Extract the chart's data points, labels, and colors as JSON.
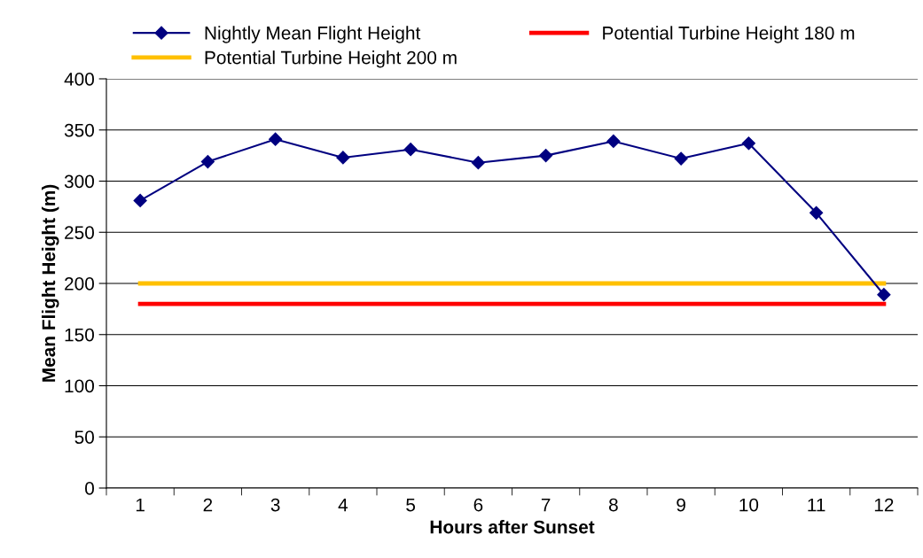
{
  "chart_data": {
    "type": "line",
    "xlabel": "Hours after Sunset",
    "ylabel": "Mean Flight Height (m)",
    "categories": [
      "1",
      "2",
      "3",
      "4",
      "5",
      "6",
      "7",
      "8",
      "9",
      "10",
      "11",
      "12"
    ],
    "series": [
      {
        "name": "Nightly Mean Flight Height",
        "color": "#000080",
        "marker": "diamond",
        "values": [
          281,
          319,
          341,
          323,
          331,
          318,
          325,
          339,
          322,
          337,
          269,
          189
        ]
      },
      {
        "name": "Potential Turbine Height 180 m",
        "color": "#ff0000",
        "marker": "none",
        "values": [
          180,
          180,
          180,
          180,
          180,
          180,
          180,
          180,
          180,
          180,
          180,
          180
        ]
      },
      {
        "name": "Potential Turbine Height 200 m",
        "color": "#ffc000",
        "marker": "none",
        "values": [
          200,
          200,
          200,
          200,
          200,
          200,
          200,
          200,
          200,
          200,
          200,
          200
        ]
      }
    ],
    "ylim": [
      0,
      400
    ],
    "yticks": [
      0,
      50,
      100,
      150,
      200,
      250,
      300,
      350,
      400
    ],
    "grid": "y",
    "legend": "top"
  }
}
